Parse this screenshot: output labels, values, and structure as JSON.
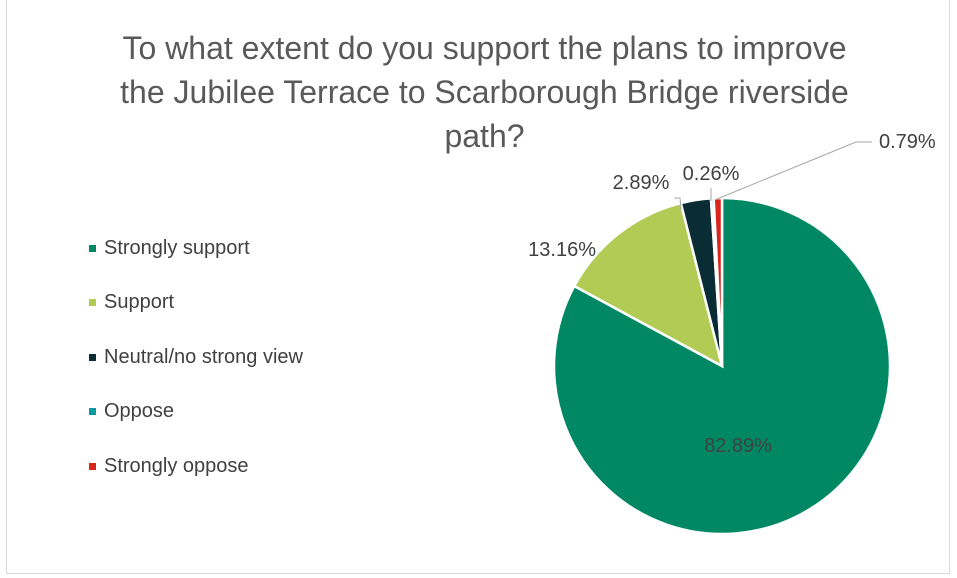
{
  "chart_data": {
    "type": "pie",
    "title": "To what extent do you support the plans to improve the Jubilee Terrace to Scarborough Bridge riverside path?",
    "categories": [
      "Strongly support",
      "Support",
      "Neutral/no strong view",
      "Oppose",
      "Strongly oppose"
    ],
    "values": [
      82.89,
      13.16,
      2.89,
      0.26,
      0.79
    ],
    "data_labels": [
      "82.89%",
      "13.16%",
      "2.89%",
      "0.26%",
      "0.79%"
    ],
    "colors": [
      "#008865",
      "#B1CB54",
      "#0A2C34",
      "#0B9A9F",
      "#D9261C"
    ],
    "legend_position": "left"
  }
}
